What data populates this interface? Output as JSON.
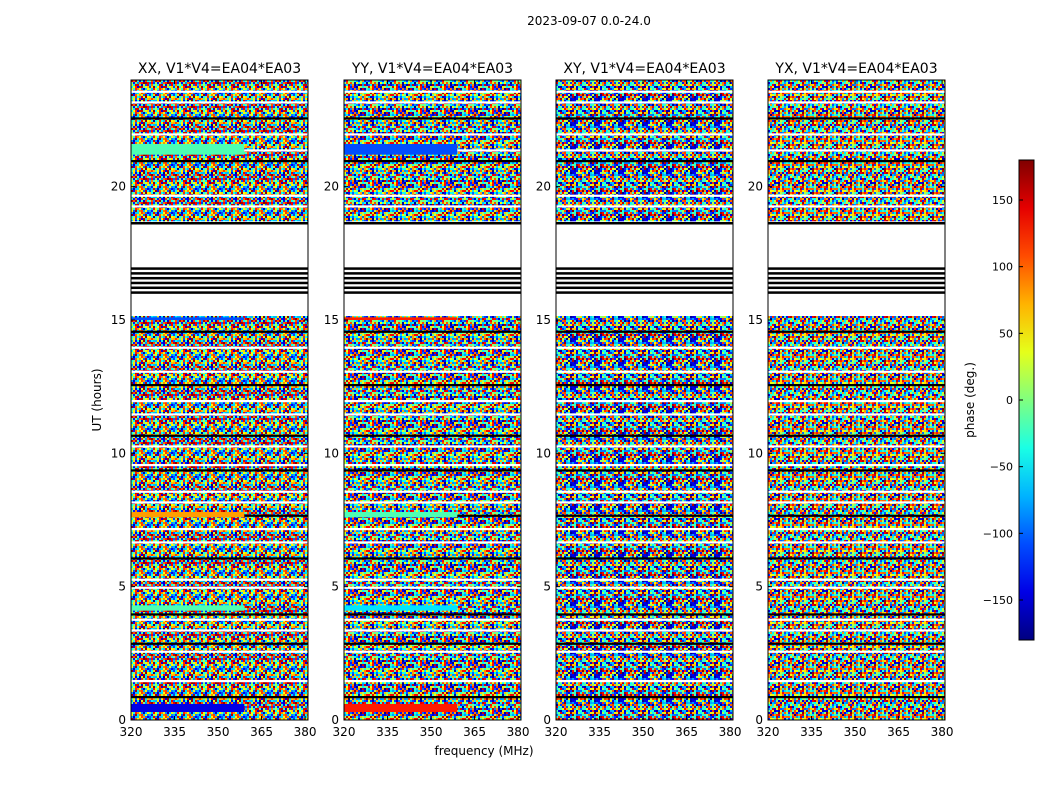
{
  "figure_title": "2023-09-07 0.0-24.0",
  "colors": {
    "background": "#ffffff",
    "axis": "#000000"
  },
  "chart_data": {
    "type": "heatmap",
    "xlabel": "frequency (MHz)",
    "ylabel": "UT (hours)",
    "xlim": [
      320,
      381
    ],
    "ylim": [
      0,
      24
    ],
    "xticks": [
      320,
      335,
      350,
      365,
      380
    ],
    "yticks": [
      0,
      5,
      10,
      15,
      20
    ],
    "colorbar": {
      "label": "phase (deg.)",
      "range": [
        -180,
        180
      ],
      "ticks": [
        -150,
        -100,
        -50,
        0,
        50,
        100,
        150
      ],
      "ticklabels": [
        "−150",
        "−100",
        "−50",
        "0",
        "50",
        "100",
        "150"
      ],
      "colormap": "jet"
    },
    "panels": [
      {
        "title": "XX, V1*V4=EA04*EA03",
        "polarization": "XX"
      },
      {
        "title": "YY, V1*V4=EA04*EA03",
        "polarization": "YY"
      },
      {
        "title": "XY, V1*V4=EA04*EA03",
        "polarization": "XY"
      },
      {
        "title": "YX, V1*V4=EA04*EA03",
        "polarization": "YX"
      }
    ],
    "flagged_intervals_hours": [
      [
        16.0,
        17.0
      ],
      [
        18.6,
        18.7
      ]
    ],
    "data_gaps_hours": [
      [
        15.15,
        18.7
      ]
    ]
  }
}
